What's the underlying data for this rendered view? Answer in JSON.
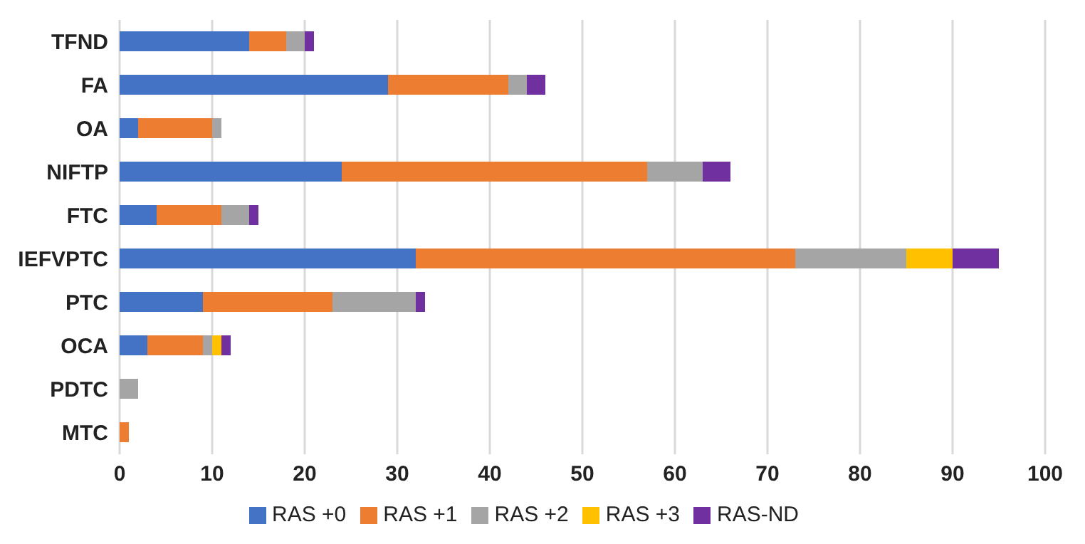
{
  "chart_data": {
    "type": "bar",
    "orientation": "horizontal",
    "stacked": true,
    "categories": [
      "TFND",
      "FA",
      "OA",
      "NIFTP",
      "FTC",
      "IEFVPTC",
      "PTC",
      "OCA",
      "PDTC",
      "MTC"
    ],
    "series": [
      {
        "name": "RAS +0",
        "color": "#4472c4",
        "values": [
          14,
          29,
          2,
          24,
          4,
          32,
          9,
          3,
          0,
          0
        ]
      },
      {
        "name": "RAS +1",
        "color": "#ed7d31",
        "values": [
          4,
          13,
          8,
          33,
          7,
          41,
          14,
          6,
          0,
          1
        ]
      },
      {
        "name": "RAS +2",
        "color": "#a5a5a5",
        "values": [
          2,
          2,
          1,
          6,
          3,
          12,
          9,
          1,
          2,
          0
        ]
      },
      {
        "name": "RAS +3",
        "color": "#ffc000",
        "values": [
          0,
          0,
          0,
          0,
          0,
          5,
          0,
          1,
          0,
          0
        ]
      },
      {
        "name": "RAS-ND",
        "color": "#7030a0",
        "values": [
          1,
          2,
          0,
          3,
          1,
          5,
          1,
          1,
          0,
          0
        ]
      }
    ],
    "xlim": [
      0,
      100
    ],
    "xticks": [
      0,
      10,
      20,
      30,
      40,
      50,
      60,
      70,
      80,
      90,
      100
    ],
    "grid": "x",
    "legend": "bottom"
  }
}
